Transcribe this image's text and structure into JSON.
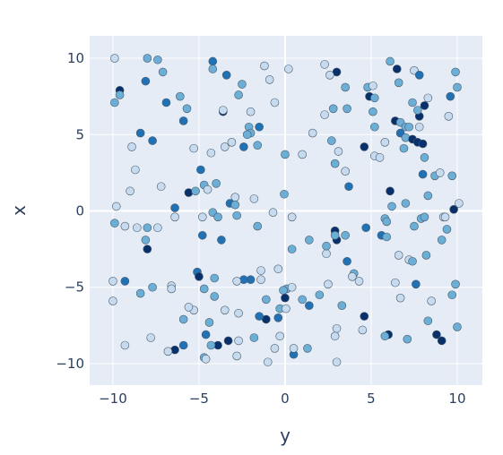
{
  "chart_data": {
    "type": "scatter",
    "xlabel": "y",
    "ylabel": "x",
    "xlim": [
      -11.35,
      11.46
    ],
    "ylim": [
      -11.41,
      11.47
    ],
    "xticks": [
      {
        "value": -10,
        "label": "−10"
      },
      {
        "value": -5,
        "label": "−5"
      },
      0,
      5,
      10
    ],
    "yticks": [
      {
        "value": -10,
        "label": "−10"
      },
      {
        "value": -5,
        "label": "−5"
      },
      0,
      5,
      10
    ],
    "grid": true,
    "x": [
      -9.9,
      -8.0,
      -7.4,
      -7.1,
      -9.6,
      -9.6,
      -9.9,
      -8.1,
      -6.9,
      -6.1,
      -5.9,
      -5.7,
      -8.4,
      -7.7,
      -8.9,
      -8.7,
      -5.3,
      -4.2,
      -4.2,
      -3.4,
      -2.5,
      -2.7,
      -3.6,
      -3.6,
      -1.2,
      0.2,
      -0.9,
      -0.6,
      -2.0,
      -2.1,
      -1.5,
      -2.0,
      -2.2,
      -1.6,
      -2.4,
      -3.1,
      -4.3,
      -3.5,
      -4.9,
      -4.7,
      -4.0,
      -4.5,
      -5.6,
      -5.2,
      -2.9,
      -3.2,
      -2.9,
      -4.2,
      -3.9,
      -4.8,
      -2.8,
      -6.4,
      -6.4,
      -7.4,
      -7.2,
      -9.8,
      -9.9,
      -9.3,
      -8.6,
      -8.0,
      -8.1,
      -8.0,
      -9.0,
      -4.8,
      -3.7,
      -1.6,
      -0.7,
      -0.05,
      0.4,
      0.4,
      -0.4,
      0,
      1.0,
      1.6,
      2.3,
      3.0,
      2.6,
      3.5,
      2.3,
      2.8,
      3.6,
      2.7,
      3.1,
      2.9,
      3.5,
      3.7,
      4.8,
      5.1,
      4.9,
      5.2,
      5.1,
      5.2,
      4.6,
      5.2,
      5.5,
      5.8,
      6.1,
      6.5,
      6.6,
      7.5,
      7.8,
      7.4,
      8.1,
      8.3,
      7.8,
      7.7,
      6.4,
      6.7,
      7.0,
      7.2,
      6.7,
      7.0,
      7.4,
      7.7,
      8.0,
      7.8,
      6.9,
      8.1,
      8.0,
      8.7,
      9.0,
      9.7,
      9.5,
      9.6,
      10.0,
      9.9,
      8.3,
      6.1,
      6.2,
      7.0,
      5.8,
      5.9,
      4.7,
      5.6,
      5.9,
      7.5,
      7.9,
      8.1,
      9.2,
      9.3,
      9.4,
      9.1,
      9.8,
      10.1,
      6.6,
      7.2,
      7.4,
      8.2,
      7.6,
      6.7,
      6.4,
      9.9,
      9.7,
      8.5,
      8.3,
      10.0,
      8.8,
      9.1,
      6.0,
      5.8,
      7.1,
      4.6,
      4.5,
      4.3,
      4.0,
      3.9,
      3.6,
      2.9,
      3.0,
      3.5,
      2.9,
      2.4,
      2.4,
      1.4,
      2.5,
      3.3,
      3.0,
      2.9,
      2.0,
      1.4,
      1.0,
      1.3,
      3.0,
      0.5,
      0.5,
      0.1,
      0.4,
      -0.1,
      0,
      -0.3,
      0.05,
      -0.4,
      -0.3,
      -0.6,
      -1.0,
      -1.1,
      -1.5,
      -1.1,
      -1.4,
      -1.4,
      -2.0,
      -2.4,
      -2.8,
      -2.7,
      -3.5,
      -4.1,
      -4.1,
      -5.1,
      -5.0,
      -4.7,
      -5.3,
      -5.9,
      -5.6,
      -4.4,
      -4.6,
      -3.9,
      -3.3,
      -2.7,
      -1.8,
      -4.3,
      -4.7,
      -4.6,
      -2.8,
      -5.9,
      -6.4,
      -6.8,
      -7.8,
      -9.3,
      -10.0,
      -10.0,
      -9.3,
      -8.4,
      -7.7,
      -6.6,
      -6.6,
      -1.8
    ],
    "values": [
      10.0,
      10.0,
      9.9,
      9.1,
      7.9,
      7.6,
      7.1,
      8.5,
      7.1,
      7.5,
      5.9,
      6.7,
      5.1,
      4.6,
      4.2,
      2.7,
      4.1,
      9.8,
      9.3,
      8.9,
      8.3,
      7.6,
      6.5,
      6.6,
      9.5,
      9.3,
      8.6,
      7.1,
      6.5,
      5.5,
      5.5,
      5.1,
      5.0,
      4.3,
      4.2,
      4.5,
      3.8,
      4.2,
      2.7,
      1.7,
      1.8,
      1.4,
      1.2,
      1.3,
      0.9,
      0.5,
      0.4,
      -0.1,
      -0.4,
      -0.4,
      -0.3,
      0.2,
      -0.4,
      -1.1,
      1.6,
      0.3,
      -0.8,
      -1.0,
      -1.1,
      -1.1,
      -1.9,
      -2.5,
      1.3,
      -1.6,
      -1.9,
      -1.0,
      -0.1,
      1.1,
      -0.4,
      -2.5,
      -3.8,
      3.7,
      3.7,
      5.1,
      9.6,
      9.1,
      8.9,
      8.1,
      6.3,
      6.7,
      6.7,
      4.6,
      3.9,
      3.1,
      2.6,
      1.6,
      8.1,
      8.2,
      7.5,
      7.4,
      6.5,
      5.5,
      4.2,
      3.6,
      3.5,
      4.5,
      9.8,
      9.3,
      8.4,
      9.2,
      8.9,
      7.1,
      6.9,
      7.4,
      6.2,
      6.6,
      5.9,
      5.8,
      5.5,
      5.5,
      5.1,
      4.8,
      4.7,
      4.5,
      4.4,
      5.5,
      4.1,
      3.5,
      2.4,
      2.3,
      2.5,
      2.3,
      6.2,
      7.5,
      8.1,
      9.1,
      1.0,
      1.3,
      0.3,
      0.5,
      -0.5,
      -0.7,
      -1.1,
      -1.6,
      -1.7,
      -1.0,
      -0.5,
      -0.4,
      -0.4,
      -0.4,
      -1.2,
      -1.9,
      0.1,
      0.5,
      -2.9,
      -3.2,
      -3.3,
      -2.9,
      -4.8,
      -5.7,
      -4.7,
      -4.8,
      -5.5,
      -5.9,
      -7.2,
      -7.6,
      -8.1,
      -8.5,
      -8.1,
      -8.2,
      -8.4,
      -6.9,
      -7.8,
      -4.6,
      -4.1,
      -4.3,
      -3.3,
      -1.3,
      -1.9,
      -1.6,
      -1.6,
      -2.8,
      -2.3,
      -1.9,
      -4.8,
      -6.2,
      -7.7,
      -8.2,
      -5.5,
      -6.2,
      -5.8,
      -9.0,
      -9.9,
      -9.4,
      -9.0,
      -5.1,
      -5.0,
      -5.2,
      -5.7,
      -6.4,
      -6.4,
      -7.0,
      -8.2,
      -9.0,
      -9.9,
      -7.1,
      -6.9,
      -5.8,
      -4.5,
      -3.9,
      -4.5,
      -4.5,
      -4.6,
      -6.7,
      -6.5,
      -5.6,
      -4.4,
      -4.0,
      -4.3,
      -5.1,
      -6.5,
      -7.1,
      -6.3,
      -7.3,
      -8.1,
      -8.8,
      -8.5,
      -8.5,
      -8.3,
      -8.8,
      -9.6,
      -9.7,
      -9.5,
      -8.8,
      -9.1,
      -9.2,
      -8.3,
      -8.8,
      -5.9,
      -4.6,
      -4.6,
      -5.4,
      -5.0,
      -4.9,
      -5.1,
      0.8
    ],
    "colors": [
      "#c6dbef",
      "#6baed6",
      "#6baed6",
      "#6baed6",
      "#08306b",
      "#6baed6",
      "#6baed6",
      "#2171b5",
      "#2171b5",
      "#6baed6",
      "#2171b5",
      "#6baed6",
      "#2171b5",
      "#2171b5",
      "#c6dbef",
      "#c6dbef",
      "#c6dbef",
      "#2171b5",
      "#6baed6",
      "#2171b5",
      "#6baed6",
      "#6baed6",
      "#08306b",
      "#c6dbef",
      "#c6dbef",
      "#c6dbef",
      "#c6dbef",
      "#c6dbef",
      "#c6dbef",
      "#6baed6",
      "#2171b5",
      "#6baed6",
      "#6baed6",
      "#6baed6",
      "#2171b5",
      "#c6dbef",
      "#c6dbef",
      "#c6dbef",
      "#2171b5",
      "#6baed6",
      "#6baed6",
      "#c6dbef",
      "#08306b",
      "#6baed6",
      "#c6dbef",
      "#2171b5",
      "#6baed6",
      "#6baed6",
      "#6baed6",
      "#c6dbef",
      "#6baed6",
      "#2171b5",
      "#c6dbef",
      "#c6dbef",
      "#c6dbef",
      "#c6dbef",
      "#6baed6",
      "#c6dbef",
      "#c6dbef",
      "#6baed6",
      "#6baed6",
      "#08306b",
      "#c6dbef",
      "#2171b5",
      "#2171b5",
      "#6baed6",
      "#c6dbef",
      "#6baed6",
      "#c6dbef",
      "#6baed6",
      "#c6dbef",
      "#6baed6",
      "#c6dbef",
      "#c6dbef",
      "#c6dbef",
      "#08306b",
      "#c6dbef",
      "#6baed6",
      "#c6dbef",
      "#6baed6",
      "#6baed6",
      "#6baed6",
      "#c6dbef",
      "#6baed6",
      "#c6dbef",
      "#2171b5",
      "#6baed6",
      "#c6dbef",
      "#08306b",
      "#6baed6",
      "#6baed6",
      "#6baed6",
      "#08306b",
      "#c6dbef",
      "#c6dbef",
      "#c6dbef",
      "#6baed6",
      "#08306b",
      "#6baed6",
      "#c6dbef",
      "#2171b5",
      "#6baed6",
      "#08306b",
      "#c6dbef",
      "#08306b",
      "#6baed6",
      "#08306b",
      "#6baed6",
      "#6baed6",
      "#6baed6",
      "#2171b5",
      "#6baed6",
      "#08306b",
      "#08306b",
      "#08306b",
      "#c6dbef",
      "#6baed6",
      "#6baed6",
      "#2171b5",
      "#6baed6",
      "#c6dbef",
      "#6baed6",
      "#c6dbef",
      "#2171b5",
      "#6baed6",
      "#6baed6",
      "#6baed6",
      "#08306b",
      "#6baed6",
      "#6baed6",
      "#6baed6",
      "#6baed6",
      "#2171b5",
      "#2171b5",
      "#6baed6",
      "#6baed6",
      "#6baed6",
      "#6baed6",
      "#c6dbef",
      "#c6dbef",
      "#6baed6",
      "#6baed6",
      "#08306b",
      "#c6dbef",
      "#c6dbef",
      "#c6dbef",
      "#6baed6",
      "#6baed6",
      "#2171b5",
      "#c6dbef",
      "#c6dbef",
      "#6baed6",
      "#6baed6",
      "#c6dbef",
      "#6baed6",
      "#6baed6",
      "#08306b",
      "#08306b",
      "#08306b",
      "#6baed6",
      "#6baed6",
      "#08306b",
      "#c6dbef",
      "#c6dbef",
      "#6baed6",
      "#c6dbef",
      "#2171b5",
      "#08306b",
      "#08306b",
      "#6baed6",
      "#6baed6",
      "#c6dbef",
      "#6baed6",
      "#6baed6",
      "#c6dbef",
      "#6baed6",
      "#c6dbef",
      "#c6dbef",
      "#6baed6",
      "#2171b5",
      "#6baed6",
      "#6baed6",
      "#c6dbef",
      "#2171b5",
      "#c6dbef",
      "#6baed6",
      "#c6dbef",
      "#6baed6",
      "#08306b",
      "#6baed6",
      "#c6dbef",
      "#2171b5",
      "#c6dbef",
      "#c6dbef",
      "#c6dbef",
      "#08306b",
      "#2171b5",
      "#6baed6",
      "#c6dbef",
      "#c6dbef",
      "#2171b5",
      "#2171b5",
      "#c6dbef",
      "#c6dbef",
      "#c6dbef",
      "#6baed6",
      "#6baed6",
      "#2171b5",
      "#08306b",
      "#6baed6",
      "#c6dbef",
      "#6baed6",
      "#c6dbef",
      "#6baed6",
      "#2171b5",
      "#08306b",
      "#08306b",
      "#c6dbef",
      "#6baed6",
      "#6baed6",
      "#6baed6",
      "#c6dbef",
      "#c6dbef",
      "#2171b5",
      "#08306b",
      "#c6dbef",
      "#c6dbef",
      "#c6dbef",
      "#c6dbef",
      "#c6dbef",
      "#2171b5",
      "#6baed6",
      "#6baed6",
      "#c6dbef",
      "#c6dbef",
      "#c6dbef"
    ]
  }
}
